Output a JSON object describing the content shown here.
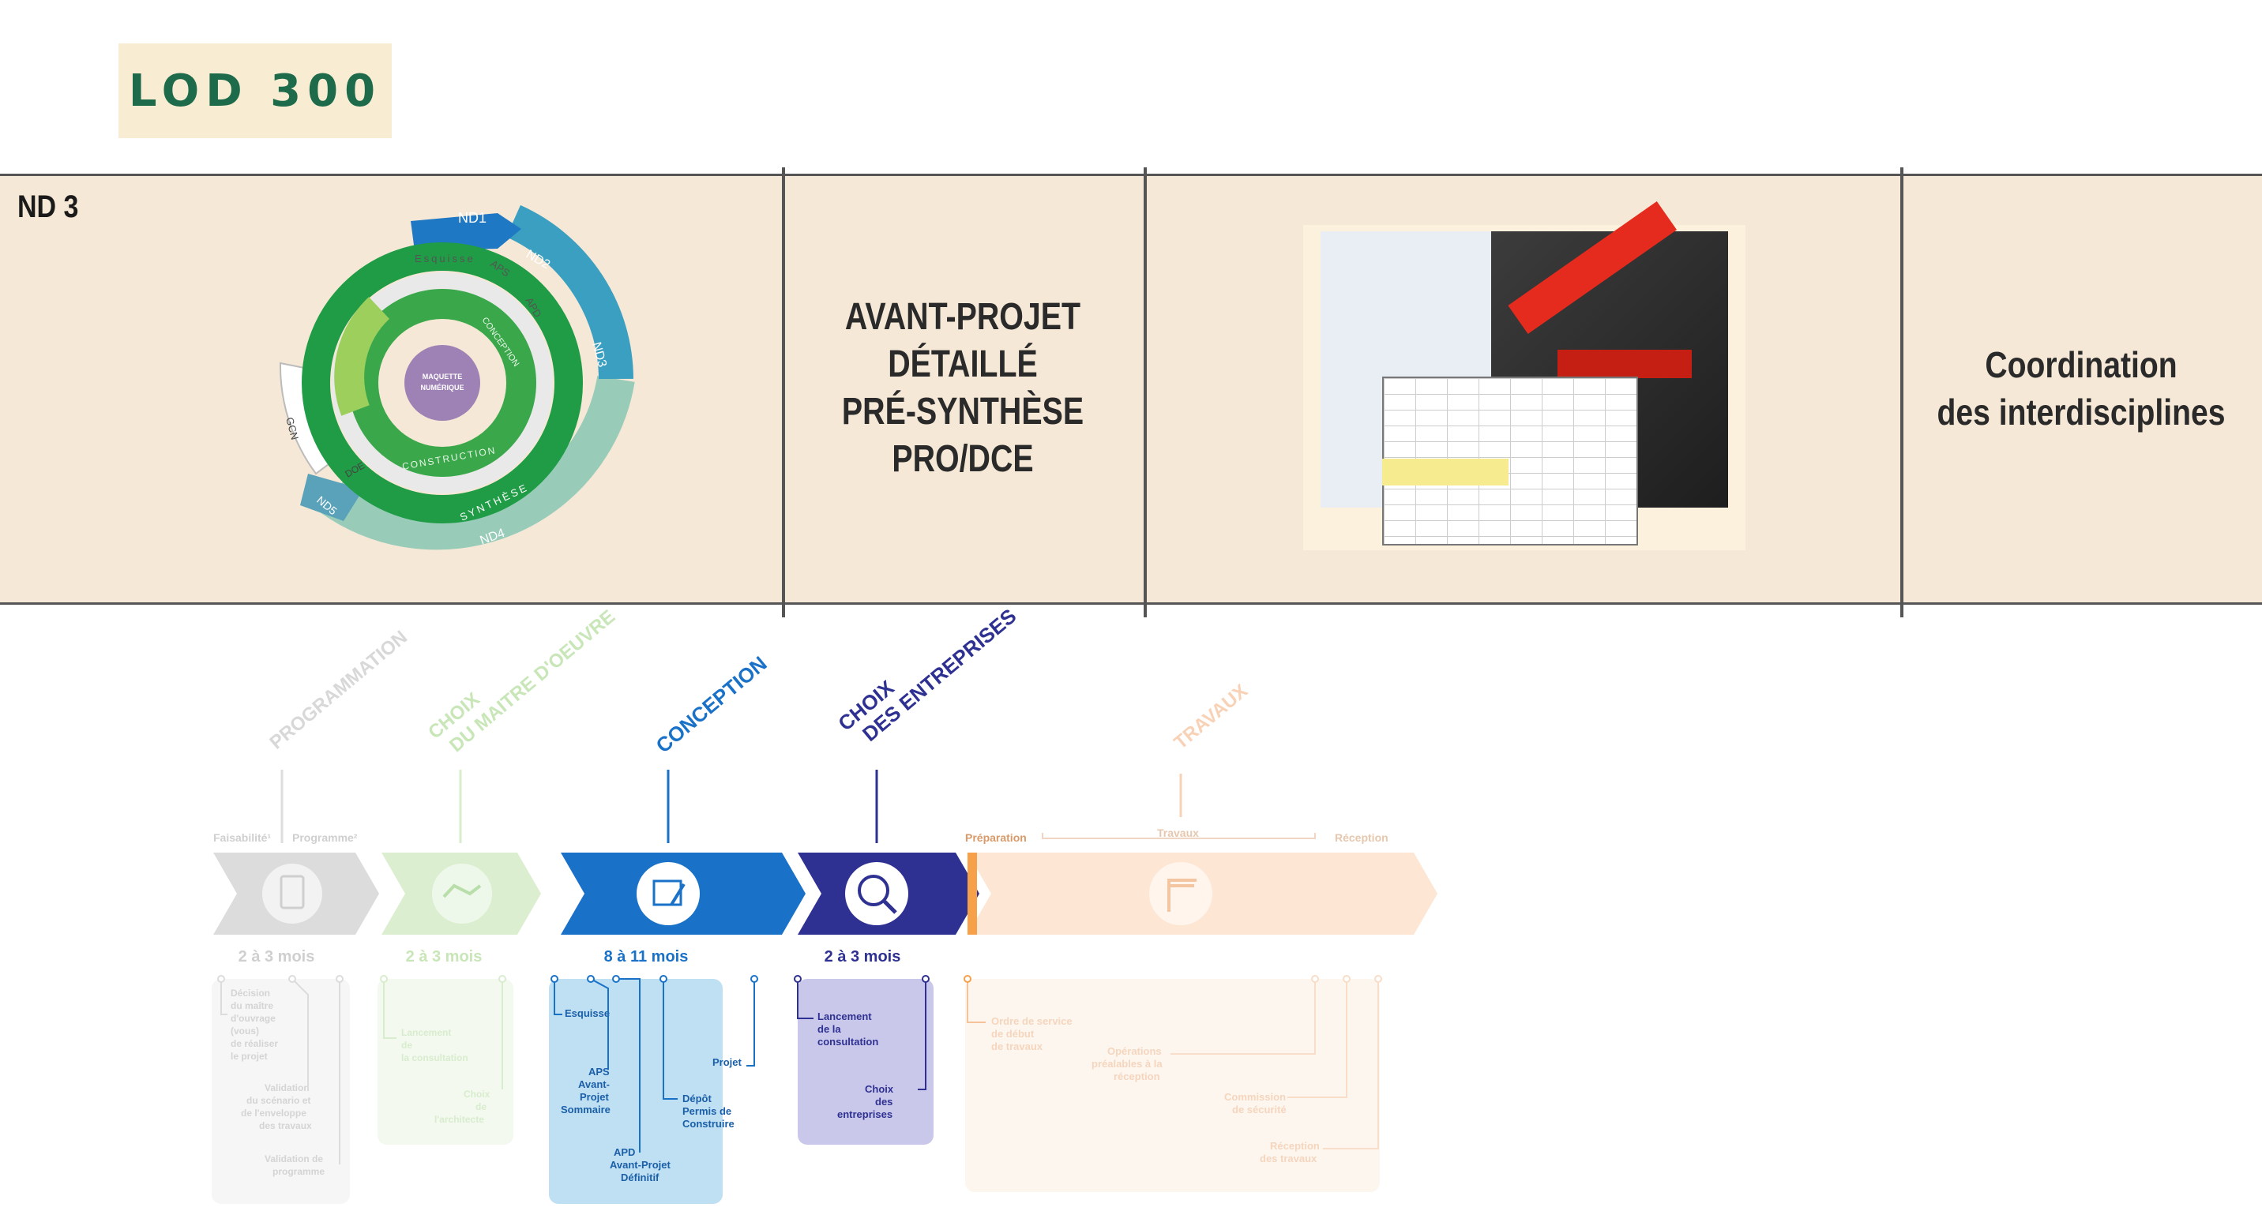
{
  "header": {
    "badge": "LOD 300"
  },
  "band": {
    "nd_label": "ND 3",
    "phase_lines": [
      "AVANT-PROJET",
      "DÉTAILLÉ",
      "PRÉ-SYNTHÈSE",
      "PRO/DCE"
    ],
    "coordination_lines": [
      "Coordination",
      "des interdisciplines"
    ],
    "cycle": {
      "center": [
        "MAQUETTE",
        "NUMÉRIQUE"
      ],
      "outer_labels": [
        "ND1",
        "ND2",
        "ND3",
        "ND4",
        "ND5"
      ],
      "ring_labels": [
        "Esquisse",
        "APS",
        "APD",
        "CONCEPTION",
        "CONSTRUCTION",
        "SYNTHÈSE",
        "DOE",
        "GCN"
      ]
    }
  },
  "timeline": {
    "phases": [
      {
        "title": "PROGRAMMATION",
        "color": "#c9c9c9",
        "duration": "2 à 3 mois",
        "faded": true
      },
      {
        "title": "CHOIX\nDU MAITRE D'OEUVRE",
        "color": "#a8d890",
        "duration": "2 à 3 mois",
        "faded": true
      },
      {
        "title": "CONCEPTION",
        "color": "#1a72c8",
        "duration": "8 à 11 mois",
        "faded": false
      },
      {
        "title": "CHOIX\nDES ENTREPRISES",
        "color": "#2e3192",
        "duration": "2 à 3 mois",
        "faded": false
      },
      {
        "title": "TRAVAUX",
        "color": "#f7b98a",
        "duration": "",
        "faded": true
      }
    ],
    "sub_labels": {
      "faisabilite": "Faisabilité¹",
      "programme": "Programme²",
      "preparation": "Préparation",
      "travaux": "Travaux",
      "reception": "Réception"
    },
    "programmation_items": [
      "Décision du maître d'ouvrage (vous) de réaliser le projet",
      "Validation du scénario et de l'enveloppe des travaux",
      "Validation de programme"
    ],
    "choix_moe_items": [
      "Lancement de la consultation",
      "Choix de l'architecte"
    ],
    "conception_items": [
      "Esquisse",
      "APS Avant-Projet Sommaire",
      "APD Avant-Projet Définitif",
      "Dépôt Permis de Construire",
      "Projet"
    ],
    "choix_entreprises_items": [
      "Lancement de la consultation",
      "Choix des entreprises"
    ],
    "travaux_items": [
      "Ordre de service de début de travaux",
      "Opérations préalables à la réception",
      "Commission de sécurité",
      "Réception des travaux"
    ]
  }
}
